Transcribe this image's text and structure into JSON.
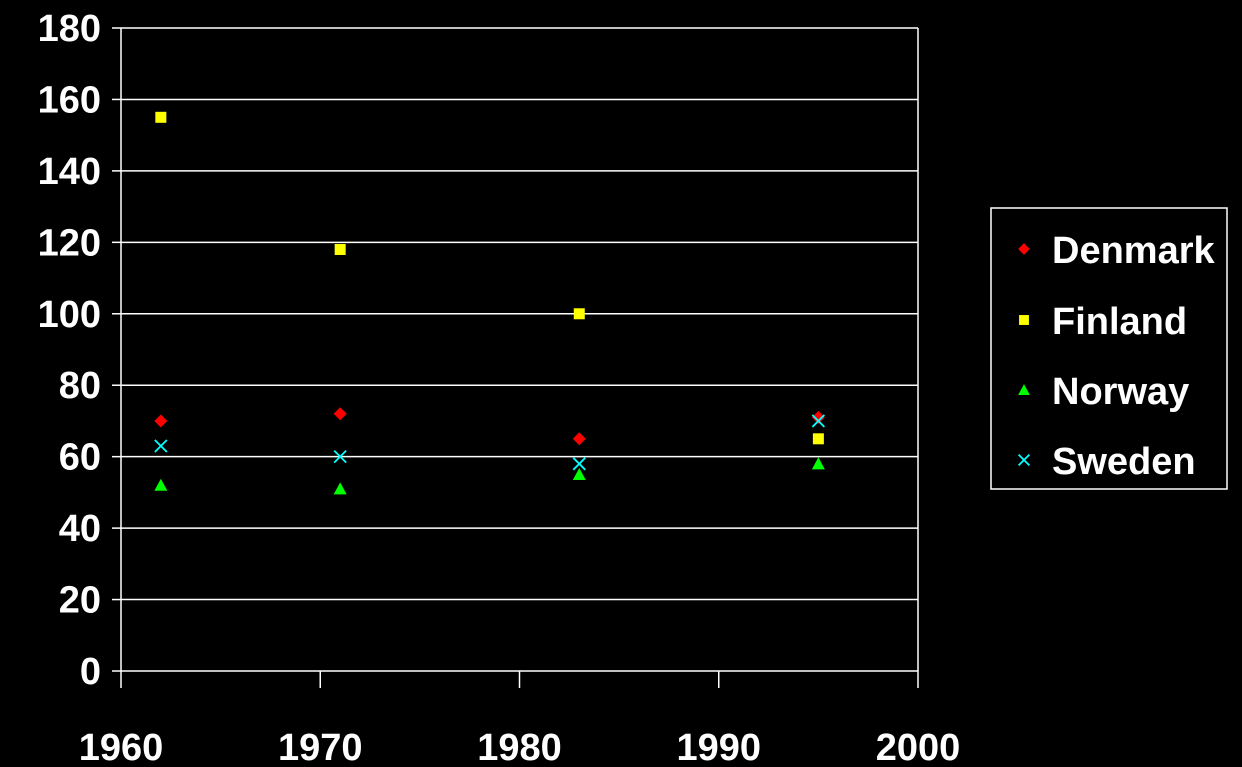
{
  "chart_data": {
    "type": "scatter",
    "title": "",
    "xlabel": "",
    "ylabel": "",
    "xlim": [
      1960,
      2000
    ],
    "ylim": [
      0,
      180
    ],
    "xticks": [
      1960,
      1970,
      1980,
      1990,
      2000
    ],
    "yticks": [
      0,
      20,
      40,
      60,
      80,
      100,
      120,
      140,
      160,
      180
    ],
    "grid": "horizontal",
    "legend_position": "right",
    "series": [
      {
        "name": "Denmark",
        "marker": "diamond",
        "color": "#ff0000",
        "points": [
          {
            "x": 1962,
            "y": 70
          },
          {
            "x": 1971,
            "y": 72
          },
          {
            "x": 1983,
            "y": 65
          },
          {
            "x": 1995,
            "y": 71
          }
        ]
      },
      {
        "name": "Finland",
        "marker": "square",
        "color": "#ffff00",
        "points": [
          {
            "x": 1962,
            "y": 155
          },
          {
            "x": 1971,
            "y": 118
          },
          {
            "x": 1983,
            "y": 100
          },
          {
            "x": 1995,
            "y": 65
          }
        ]
      },
      {
        "name": "Norway",
        "marker": "triangle",
        "color": "#00ff00",
        "points": [
          {
            "x": 1962,
            "y": 52
          },
          {
            "x": 1971,
            "y": 51
          },
          {
            "x": 1983,
            "y": 55
          },
          {
            "x": 1995,
            "y": 58
          }
        ]
      },
      {
        "name": "Sweden",
        "marker": "x",
        "color": "#00ffff",
        "points": [
          {
            "x": 1962,
            "y": 63
          },
          {
            "x": 1971,
            "y": 60
          },
          {
            "x": 1983,
            "y": 58
          },
          {
            "x": 1995,
            "y": 70
          }
        ]
      }
    ]
  }
}
